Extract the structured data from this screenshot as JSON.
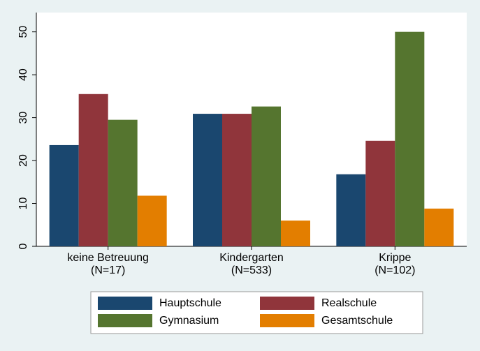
{
  "chart_data": {
    "type": "bar",
    "categories": [
      [
        "keine Betreuung",
        "(N=17)"
      ],
      [
        "Kindergarten",
        "(N=533)"
      ],
      [
        "Krippe",
        "(N=102)"
      ]
    ],
    "series": [
      {
        "name": "Hauptschule",
        "color": "#1a476f",
        "values": [
          23.6,
          30.9,
          16.8
        ]
      },
      {
        "name": "Realschule",
        "color": "#90353b",
        "values": [
          35.5,
          30.9,
          24.6
        ]
      },
      {
        "name": "Gymnasium",
        "color": "#55752f",
        "values": [
          29.5,
          32.6,
          50.0
        ]
      },
      {
        "name": "Gesamtschule",
        "color": "#e37e00",
        "values": [
          11.8,
          6.0,
          8.8
        ]
      }
    ],
    "ylim": [
      0,
      54.5
    ],
    "yticks": [
      0,
      10,
      20,
      30,
      40,
      50
    ],
    "grid": false,
    "legend": "bottom"
  }
}
